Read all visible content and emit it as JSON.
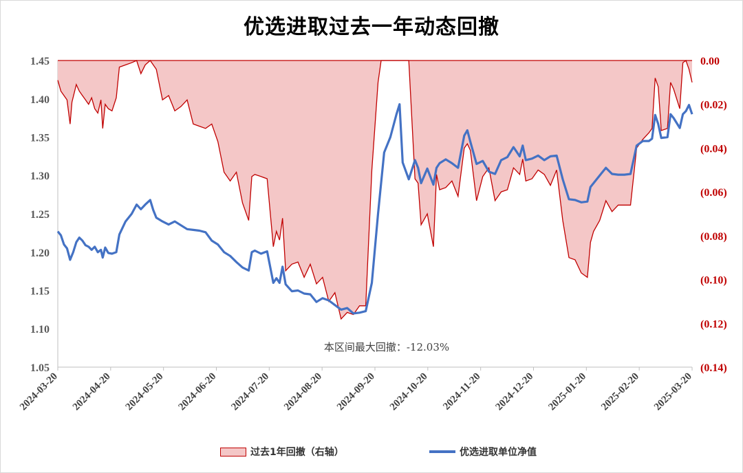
{
  "chart_data": {
    "type": "area+line",
    "title": "优选进取过去一年动态回撤",
    "annotation": "本区间最大回撤：-12.03%",
    "left_axis": {
      "min": 1.05,
      "max": 1.45,
      "ticks": [
        "1.45",
        "1.40",
        "1.35",
        "1.30",
        "1.25",
        "1.20",
        "1.15",
        "1.10",
        "1.05"
      ]
    },
    "right_axis": {
      "min": -0.14,
      "max": 0.0,
      "ticks": [
        "0.00",
        "(0.02)",
        "(0.04)",
        "(0.06)",
        "(0.08)",
        "(0.10)",
        "(0.12)",
        "(0.14)"
      ]
    },
    "x_ticks": [
      "2024-03-20",
      "2024-04-20",
      "2024-05-20",
      "2024-06-20",
      "2024-07-20",
      "2024-08-20",
      "2024-09-20",
      "2024-10-20",
      "2024-11-20",
      "2024-12-20",
      "2025-01-20",
      "2025-02-20",
      "2025-03-20"
    ],
    "series": [
      {
        "name": "过去1年回撤（右轴）",
        "axis": "right",
        "style": "area",
        "color": "#c00000",
        "fill": "#f4c7c7",
        "points": [
          [
            0,
            -0.009
          ],
          [
            0.5,
            -0.014
          ],
          [
            1,
            -0.016
          ],
          [
            1.5,
            -0.018
          ],
          [
            2,
            -0.029
          ],
          [
            2.3,
            -0.019
          ],
          [
            3,
            -0.011
          ],
          [
            3.5,
            -0.014
          ],
          [
            4,
            -0.016
          ],
          [
            4.5,
            -0.018
          ],
          [
            5,
            -0.02
          ],
          [
            5.5,
            -0.017
          ],
          [
            6,
            -0.022
          ],
          [
            6.5,
            -0.024
          ],
          [
            7,
            -0.018
          ],
          [
            7.3,
            -0.031
          ],
          [
            7.7,
            -0.02
          ],
          [
            8.2,
            -0.022
          ],
          [
            8.8,
            -0.023
          ],
          [
            9.5,
            -0.017
          ],
          [
            10,
            -0.003
          ],
          [
            11,
            -0.002
          ],
          [
            12,
            -0.001
          ],
          [
            12.8,
            0
          ],
          [
            13.5,
            -0.006
          ],
          [
            14.2,
            -0.002
          ],
          [
            15,
            0
          ],
          [
            16,
            -0.004
          ],
          [
            17,
            -0.018
          ],
          [
            18,
            -0.016
          ],
          [
            19,
            -0.023
          ],
          [
            20,
            -0.021
          ],
          [
            21,
            -0.018
          ],
          [
            22,
            -0.029
          ],
          [
            23,
            -0.03
          ],
          [
            24,
            -0.031
          ],
          [
            25,
            -0.029
          ],
          [
            26,
            -0.037
          ],
          [
            27,
            -0.051
          ],
          [
            28,
            -0.055
          ],
          [
            29,
            -0.051
          ],
          [
            30,
            -0.065
          ],
          [
            31,
            -0.073
          ],
          [
            31.5,
            -0.053
          ],
          [
            32,
            -0.052
          ],
          [
            33,
            -0.053
          ],
          [
            34,
            -0.054
          ],
          [
            35,
            -0.085
          ],
          [
            35.5,
            -0.078
          ],
          [
            36,
            -0.082
          ],
          [
            36.5,
            -0.072
          ],
          [
            37,
            -0.096
          ],
          [
            38,
            -0.093
          ],
          [
            39,
            -0.092
          ],
          [
            40,
            -0.099
          ],
          [
            41,
            -0.093
          ],
          [
            42,
            -0.102
          ],
          [
            43,
            -0.099
          ],
          [
            44,
            -0.11
          ],
          [
            45,
            -0.106
          ],
          [
            46,
            -0.118
          ],
          [
            47,
            -0.115
          ],
          [
            48,
            -0.116
          ],
          [
            49,
            -0.112
          ],
          [
            50,
            -0.112
          ],
          [
            51,
            -0.05
          ],
          [
            52,
            -0.01
          ],
          [
            52.5,
            0
          ],
          [
            53,
            0
          ],
          [
            54,
            0
          ],
          [
            55,
            0
          ],
          [
            56,
            0
          ],
          [
            57,
            0
          ],
          [
            58,
            -0.054
          ],
          [
            58.5,
            -0.056
          ],
          [
            59,
            -0.075
          ],
          [
            60,
            -0.07
          ],
          [
            61,
            -0.085
          ],
          [
            61.5,
            -0.052
          ],
          [
            62,
            -0.059
          ],
          [
            63,
            -0.058
          ],
          [
            64,
            -0.055
          ],
          [
            65,
            -0.062
          ],
          [
            66,
            -0.04
          ],
          [
            66.5,
            -0.038
          ],
          [
            67,
            -0.041
          ],
          [
            68,
            -0.064
          ],
          [
            69,
            -0.053
          ],
          [
            70,
            -0.049
          ],
          [
            71,
            -0.064
          ],
          [
            72,
            -0.06
          ],
          [
            73,
            -0.059
          ],
          [
            74,
            -0.049
          ],
          [
            75,
            -0.052
          ],
          [
            75.5,
            -0.045
          ],
          [
            76,
            -0.055
          ],
          [
            77,
            -0.054
          ],
          [
            78,
            -0.05
          ],
          [
            79,
            -0.052
          ],
          [
            80,
            -0.057
          ],
          [
            81,
            -0.05
          ],
          [
            82,
            -0.073
          ],
          [
            83,
            -0.09
          ],
          [
            84,
            -0.091
          ],
          [
            85,
            -0.097
          ],
          [
            86,
            -0.099
          ],
          [
            86.5,
            -0.083
          ],
          [
            87,
            -0.078
          ],
          [
            88,
            -0.073
          ],
          [
            89,
            -0.064
          ],
          [
            90,
            -0.069
          ],
          [
            91,
            -0.066
          ],
          [
            92,
            -0.066
          ],
          [
            93,
            -0.066
          ],
          [
            94,
            -0.04
          ],
          [
            95,
            -0.036
          ],
          [
            96,
            -0.033
          ],
          [
            96.5,
            -0.031
          ],
          [
            97,
            -0.008
          ],
          [
            97.5,
            -0.012
          ],
          [
            98,
            -0.032
          ],
          [
            99,
            -0.031
          ],
          [
            99.5,
            -0.01
          ],
          [
            100,
            -0.013
          ],
          [
            101,
            -0.022
          ],
          [
            101.5,
            -0.001
          ],
          [
            102,
            0
          ],
          [
            102.5,
            -0.004
          ],
          [
            103,
            -0.01
          ]
        ]
      },
      {
        "name": "优选进取单位净值",
        "axis": "left",
        "style": "line",
        "color": "#4472c4",
        "points": [
          [
            0,
            1.227
          ],
          [
            0.5,
            1.222
          ],
          [
            1,
            1.21
          ],
          [
            1.5,
            1.205
          ],
          [
            2,
            1.19
          ],
          [
            2.5,
            1.2
          ],
          [
            3,
            1.213
          ],
          [
            3.5,
            1.219
          ],
          [
            4,
            1.215
          ],
          [
            4.5,
            1.209
          ],
          [
            5,
            1.207
          ],
          [
            5.5,
            1.203
          ],
          [
            6,
            1.207
          ],
          [
            6.5,
            1.2
          ],
          [
            7,
            1.203
          ],
          [
            7.3,
            1.193
          ],
          [
            7.7,
            1.206
          ],
          [
            8.2,
            1.199
          ],
          [
            8.8,
            1.198
          ],
          [
            9.5,
            1.2
          ],
          [
            10,
            1.223
          ],
          [
            11,
            1.24
          ],
          [
            12,
            1.25
          ],
          [
            12.8,
            1.262
          ],
          [
            13.5,
            1.256
          ],
          [
            14.2,
            1.262
          ],
          [
            15,
            1.268
          ],
          [
            15.5,
            1.255
          ],
          [
            16,
            1.245
          ],
          [
            17,
            1.24
          ],
          [
            18,
            1.236
          ],
          [
            19,
            1.24
          ],
          [
            20,
            1.235
          ],
          [
            21,
            1.23
          ],
          [
            22,
            1.229
          ],
          [
            23,
            1.228
          ],
          [
            24,
            1.226
          ],
          [
            25,
            1.215
          ],
          [
            26,
            1.21
          ],
          [
            27,
            1.2
          ],
          [
            28,
            1.195
          ],
          [
            29,
            1.187
          ],
          [
            30,
            1.18
          ],
          [
            31,
            1.176
          ],
          [
            31.5,
            1.2
          ],
          [
            32,
            1.202
          ],
          [
            33,
            1.198
          ],
          [
            34,
            1.201
          ],
          [
            35,
            1.16
          ],
          [
            35.5,
            1.166
          ],
          [
            36,
            1.16
          ],
          [
            36.5,
            1.181
          ],
          [
            37,
            1.158
          ],
          [
            38,
            1.149
          ],
          [
            39,
            1.15
          ],
          [
            40,
            1.146
          ],
          [
            41,
            1.145
          ],
          [
            42,
            1.135
          ],
          [
            43,
            1.14
          ],
          [
            44,
            1.137
          ],
          [
            45,
            1.131
          ],
          [
            46,
            1.125
          ],
          [
            47,
            1.127
          ],
          [
            48,
            1.12
          ],
          [
            49,
            1.121
          ],
          [
            50,
            1.123
          ],
          [
            51,
            1.16
          ],
          [
            52,
            1.25
          ],
          [
            53,
            1.33
          ],
          [
            54,
            1.35
          ],
          [
            55,
            1.38
          ],
          [
            55.5,
            1.393
          ],
          [
            56,
            1.317
          ],
          [
            57,
            1.295
          ],
          [
            58,
            1.32
          ],
          [
            58.5,
            1.31
          ],
          [
            59,
            1.29
          ],
          [
            60,
            1.309
          ],
          [
            61,
            1.288
          ],
          [
            61.5,
            1.31
          ],
          [
            62,
            1.316
          ],
          [
            63,
            1.321
          ],
          [
            64,
            1.316
          ],
          [
            65,
            1.31
          ],
          [
            66,
            1.352
          ],
          [
            66.5,
            1.359
          ],
          [
            67,
            1.344
          ],
          [
            68,
            1.315
          ],
          [
            69,
            1.319
          ],
          [
            70,
            1.305
          ],
          [
            71,
            1.302
          ],
          [
            72,
            1.32
          ],
          [
            73,
            1.324
          ],
          [
            74,
            1.337
          ],
          [
            75,
            1.325
          ],
          [
            75.5,
            1.339
          ],
          [
            76,
            1.32
          ],
          [
            77,
            1.322
          ],
          [
            78,
            1.326
          ],
          [
            79,
            1.32
          ],
          [
            80,
            1.325
          ],
          [
            81,
            1.326
          ],
          [
            82,
            1.295
          ],
          [
            83,
            1.269
          ],
          [
            84,
            1.268
          ],
          [
            85,
            1.265
          ],
          [
            86,
            1.266
          ],
          [
            86.5,
            1.285
          ],
          [
            87,
            1.29
          ],
          [
            88,
            1.3
          ],
          [
            89,
            1.31
          ],
          [
            90,
            1.302
          ],
          [
            91,
            1.301
          ],
          [
            92,
            1.301
          ],
          [
            93,
            1.302
          ],
          [
            94,
            1.339
          ],
          [
            95,
            1.345
          ],
          [
            96,
            1.345
          ],
          [
            96.5,
            1.348
          ],
          [
            97,
            1.379
          ],
          [
            97.5,
            1.367
          ],
          [
            98,
            1.349
          ],
          [
            99,
            1.35
          ],
          [
            99.5,
            1.38
          ],
          [
            100,
            1.375
          ],
          [
            101,
            1.362
          ],
          [
            101.5,
            1.38
          ],
          [
            102,
            1.384
          ],
          [
            102.5,
            1.392
          ],
          [
            103,
            1.38
          ]
        ]
      }
    ],
    "legend": [
      "过去1年回撤（右轴）",
      "优选进取单位净值"
    ]
  }
}
